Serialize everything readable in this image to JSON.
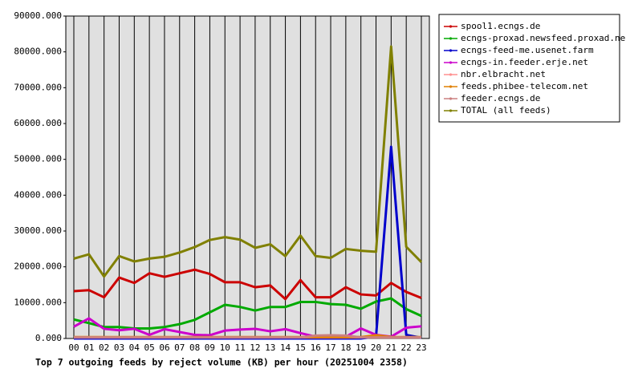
{
  "chart_data": {
    "type": "line",
    "title": "Top 7 outgoing feeds by reject volume (KB) per hour (20251004 2358)",
    "categories": [
      "00",
      "01",
      "02",
      "03",
      "04",
      "05",
      "06",
      "07",
      "08",
      "09",
      "10",
      "11",
      "12",
      "13",
      "14",
      "15",
      "16",
      "17",
      "18",
      "19",
      "20",
      "21",
      "22",
      "23"
    ],
    "ylim": [
      0,
      90000
    ],
    "yticks": [
      {
        "value": 0,
        "label": "0.000"
      },
      {
        "value": 10000,
        "label": "10000.000"
      },
      {
        "value": 20000,
        "label": "20000.000"
      },
      {
        "value": 30000,
        "label": "30000.000"
      },
      {
        "value": 40000,
        "label": "40000.000"
      },
      {
        "value": 50000,
        "label": "50000.000"
      },
      {
        "value": 60000,
        "label": "60000.000"
      },
      {
        "value": 70000,
        "label": "70000.000"
      },
      {
        "value": 80000,
        "label": "80000.000"
      },
      {
        "value": 90000,
        "label": "90000.000"
      }
    ],
    "grid": true,
    "legend": "right",
    "series": [
      {
        "name": "spool1.ecngs.de",
        "color": "#cc0000",
        "values": [
          13200,
          13500,
          11500,
          17000,
          15500,
          18200,
          17200,
          18200,
          19200,
          18000,
          15700,
          15700,
          14300,
          14800,
          11000,
          16300,
          11500,
          11500,
          14300,
          12300,
          12000,
          15500,
          13000,
          11300
        ]
      },
      {
        "name": "ecngs-proxad.newsfeed.proxad.net",
        "color": "#00aa00",
        "values": [
          5300,
          4300,
          3200,
          3200,
          2800,
          2800,
          3200,
          4000,
          5200,
          7300,
          9400,
          8800,
          7800,
          8800,
          8800,
          10200,
          10200,
          9600,
          9400,
          8300,
          10300,
          11200,
          8200,
          6300
        ]
      },
      {
        "name": "ecngs-feed-me.usenet.farm",
        "color": "#0000cc",
        "values": [
          0,
          0,
          0,
          0,
          0,
          0,
          0,
          0,
          0,
          0,
          0,
          0,
          0,
          0,
          0,
          0,
          0,
          0,
          0,
          0,
          500,
          53500,
          1000,
          200
        ]
      },
      {
        "name": "ecngs-in.feeder.erje.net",
        "color": "#cc00cc",
        "values": [
          3300,
          5600,
          2700,
          2300,
          2700,
          1000,
          2600,
          1800,
          1000,
          900,
          2200,
          2500,
          2700,
          2000,
          2600,
          1500,
          500,
          400,
          500,
          2800,
          1000,
          500,
          3000,
          3400
        ]
      },
      {
        "name": "nbr.elbracht.net",
        "color": "#ff9090",
        "values": [
          300,
          300,
          300,
          300,
          300,
          300,
          300,
          300,
          300,
          300,
          300,
          300,
          300,
          300,
          300,
          300,
          300,
          300,
          300,
          300,
          300,
          300,
          300,
          300
        ]
      },
      {
        "name": "feeds.phibee-telecom.net",
        "color": "#e08000",
        "values": [
          400,
          400,
          400,
          400,
          400,
          400,
          400,
          400,
          400,
          400,
          400,
          400,
          400,
          400,
          400,
          400,
          400,
          400,
          400,
          400,
          900,
          400,
          400,
          400
        ]
      },
      {
        "name": "feeder.ecngs.de",
        "color": "#cc8080",
        "values": [
          300,
          300,
          300,
          300,
          300,
          300,
          300,
          300,
          300,
          300,
          300,
          300,
          300,
          300,
          300,
          300,
          800,
          900,
          800,
          300,
          300,
          300,
          300,
          300
        ]
      },
      {
        "name": "TOTAL (all feeds)",
        "color": "#808000",
        "values": [
          22300,
          23500,
          17300,
          23000,
          21500,
          22300,
          22800,
          24000,
          25500,
          27500,
          28300,
          27600,
          25300,
          26300,
          23000,
          28700,
          23000,
          22500,
          25000,
          24500,
          24200,
          81500,
          25600,
          21300
        ]
      }
    ]
  }
}
